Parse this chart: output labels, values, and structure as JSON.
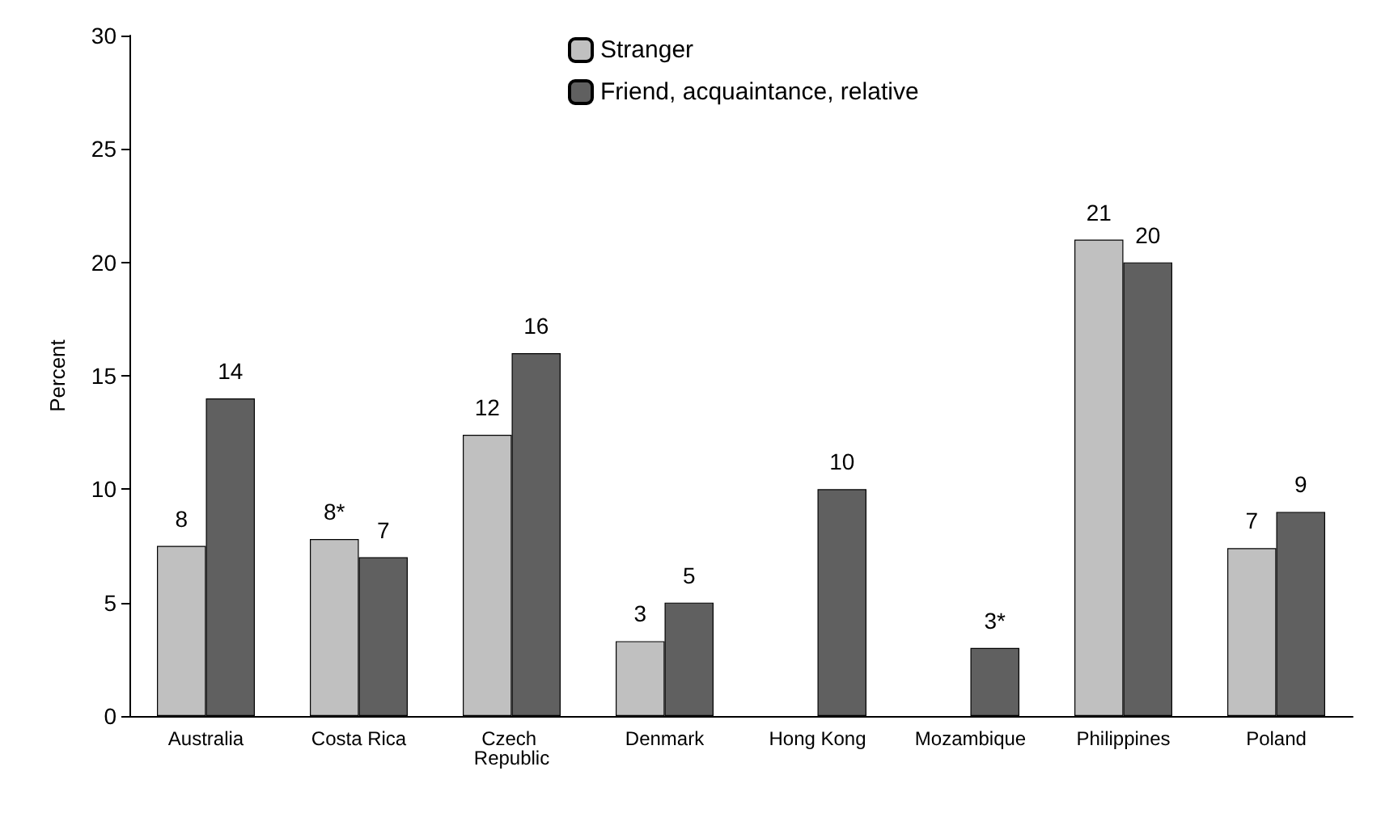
{
  "chart_data": {
    "type": "bar",
    "ylabel": "Percent",
    "categories": [
      "Australia",
      "Costa Rica",
      "Czech Republic",
      "Denmark",
      "Hong Kong",
      "Mozambique",
      "Philippines",
      "Poland"
    ],
    "series": [
      {
        "name": "Stranger",
        "color": "#c0c0c0",
        "values": [
          7.5,
          7.8,
          12.4,
          3.3,
          null,
          null,
          21,
          7.4
        ],
        "value_labels": [
          "8",
          "8*",
          "12",
          "3",
          null,
          null,
          "21",
          "7"
        ]
      },
      {
        "name": "Friend, acquaintance, relative",
        "color": "#606060",
        "values": [
          14,
          7,
          16,
          5,
          10,
          3,
          20,
          9
        ],
        "value_labels": [
          "14",
          "7",
          "16",
          "5",
          "10",
          "3*",
          "20",
          "9"
        ]
      }
    ],
    "ylim": [
      0,
      30
    ],
    "yticks": [
      0,
      5,
      10,
      15,
      20,
      25,
      30
    ],
    "grid": false,
    "legend": "top"
  }
}
